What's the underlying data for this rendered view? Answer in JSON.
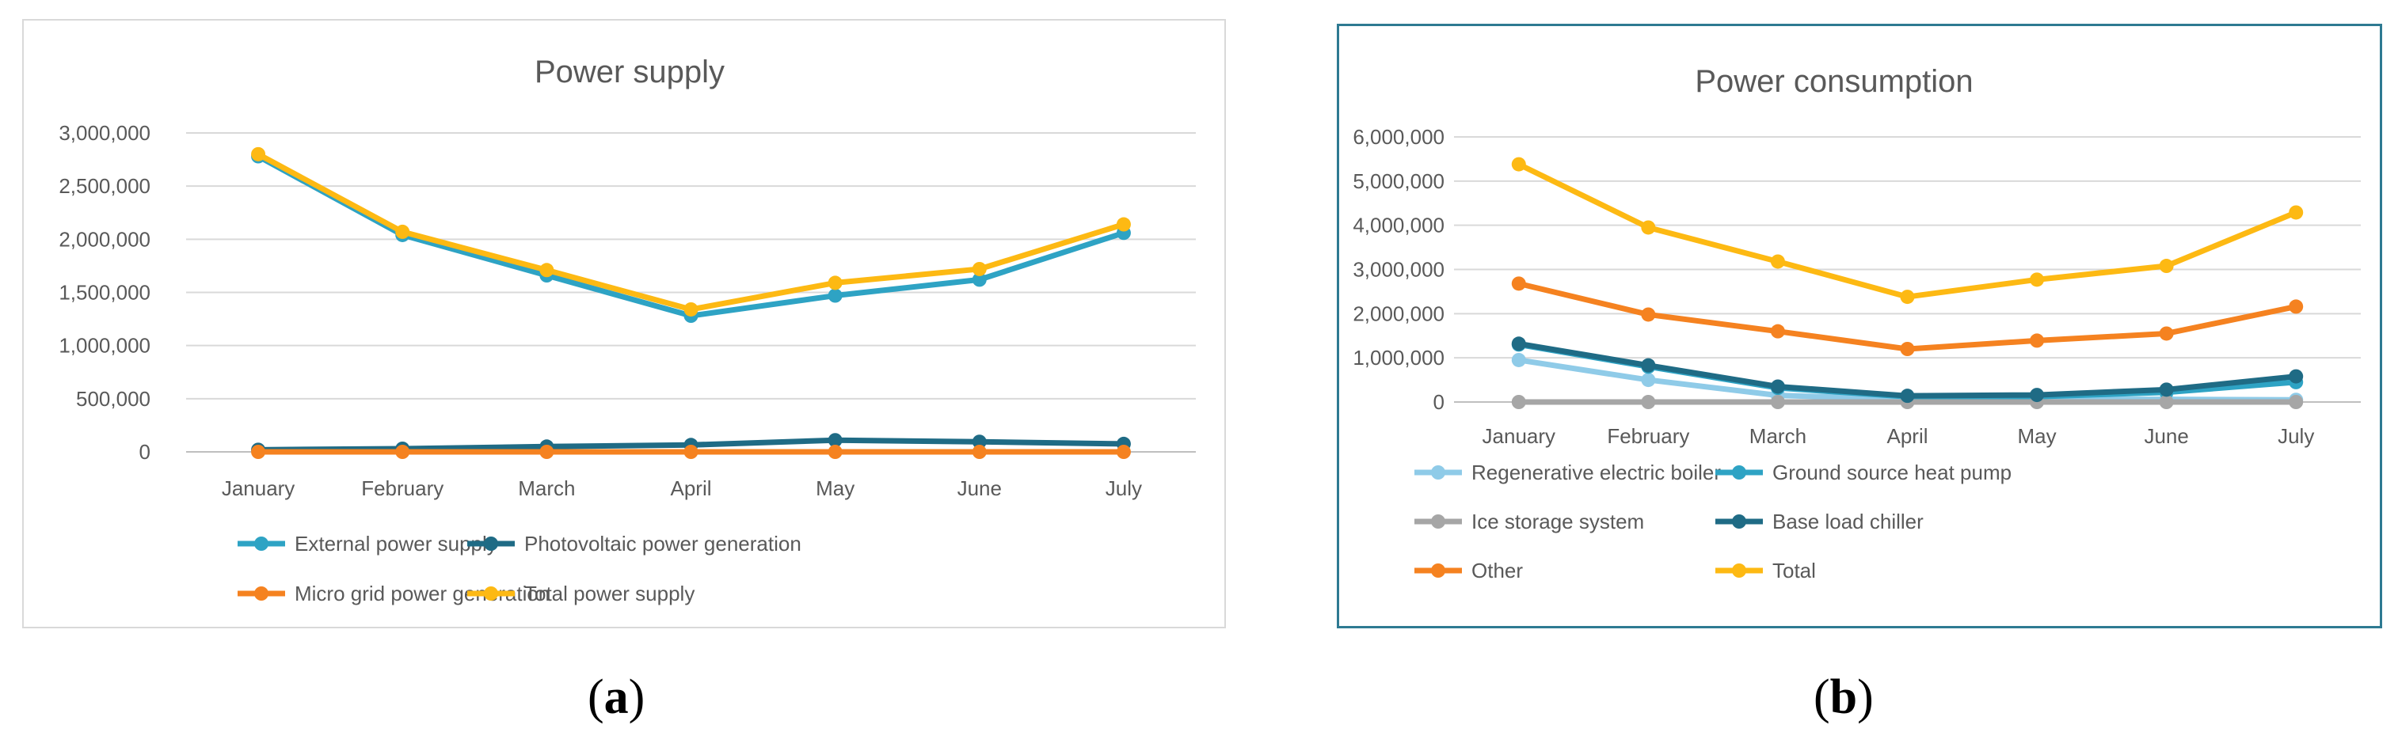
{
  "chart_data": [
    {
      "id": "a",
      "type": "line",
      "title": "Power supply",
      "categories": [
        "January",
        "February",
        "March",
        "April",
        "May",
        "June",
        "July"
      ],
      "yticks": [
        "0",
        "500,000",
        "1,000,000",
        "1,500,000",
        "2,000,000",
        "2,500,000",
        "3,000,000"
      ],
      "ylim": [
        0,
        3000000
      ],
      "grid": true,
      "legend_position": "bottom",
      "series": [
        {
          "name": "External power supply",
          "color": "#2ea3c4",
          "values": [
            2780000,
            2040000,
            1660000,
            1280000,
            1470000,
            1620000,
            2060000
          ]
        },
        {
          "name": "Photovoltaic power generation",
          "color": "#1f6b85",
          "values": [
            20000,
            30000,
            50000,
            65000,
            110000,
            95000,
            75000
          ]
        },
        {
          "name": "Micro grid power generation",
          "color": "#f58220",
          "values": [
            0,
            0,
            0,
            0,
            0,
            0,
            0
          ]
        },
        {
          "name": "Total power supply",
          "color": "#fdb913",
          "values": [
            2800000,
            2070000,
            1710000,
            1340000,
            1590000,
            1720000,
            2140000
          ]
        }
      ]
    },
    {
      "id": "b",
      "type": "line",
      "title": "Power consumption",
      "categories": [
        "January",
        "February",
        "March",
        "April",
        "May",
        "June",
        "July"
      ],
      "yticks": [
        "0",
        "1,000,000",
        "2,000,000",
        "3,000,000",
        "4,000,000",
        "5,000,000",
        "6,000,000"
      ],
      "ylim": [
        0,
        6000000
      ],
      "grid": true,
      "legend_position": "bottom",
      "series": [
        {
          "name": "Regenerative electric boiler",
          "color": "#8fcbe8",
          "values": [
            950000,
            500000,
            150000,
            60000,
            60000,
            60000,
            50000
          ]
        },
        {
          "name": "Ground source heat pump",
          "color": "#2ea3c4",
          "values": [
            1300000,
            800000,
            320000,
            120000,
            120000,
            220000,
            450000
          ]
        },
        {
          "name": "Ice storage system",
          "color": "#a6a6a6",
          "values": [
            0,
            0,
            0,
            0,
            0,
            0,
            0
          ]
        },
        {
          "name": "Base load chiller",
          "color": "#1f6b85",
          "values": [
            1320000,
            830000,
            350000,
            140000,
            160000,
            280000,
            580000
          ]
        },
        {
          "name": "Other",
          "color": "#f58220",
          "values": [
            2680000,
            1980000,
            1600000,
            1200000,
            1390000,
            1550000,
            2160000
          ]
        },
        {
          "name": "Total",
          "color": "#fdb913",
          "values": [
            5380000,
            3950000,
            3180000,
            2380000,
            2770000,
            3080000,
            4290000
          ]
        }
      ]
    }
  ],
  "captions": {
    "a": "a",
    "b": "b"
  }
}
